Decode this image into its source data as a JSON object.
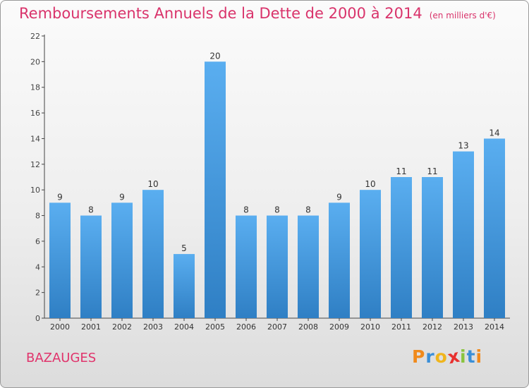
{
  "title": "Remboursements Annuels de la Dette de 2000 à 2014",
  "unit_note": "(en milliers d'€)",
  "commune": "BAZAUGES",
  "logo": {
    "letters": [
      "P",
      "r",
      "o",
      "x",
      "i",
      "t",
      "i"
    ],
    "colors": [
      "#f08a1c",
      "#3a8fd8",
      "#f0b51c",
      "#e8312f",
      "#8ac43f",
      "#3a8fd8",
      "#f08a1c"
    ]
  },
  "colors": {
    "bar_light": "#5aaef0",
    "bar_dark": "#2f7fc4",
    "title": "#d9336b"
  },
  "chart_data": {
    "type": "bar",
    "categories": [
      "2000",
      "2001",
      "2002",
      "2003",
      "2004",
      "2005",
      "2006",
      "2007",
      "2008",
      "2009",
      "2010",
      "2011",
      "2012",
      "2013",
      "2014"
    ],
    "values": [
      9,
      8,
      9,
      10,
      5,
      20,
      8,
      8,
      8,
      9,
      10,
      11,
      11,
      13,
      14
    ],
    "ylim": [
      0,
      22
    ],
    "yticks": [
      0,
      2,
      4,
      6,
      8,
      10,
      12,
      14,
      16,
      18,
      20,
      22
    ],
    "grid": false
  }
}
